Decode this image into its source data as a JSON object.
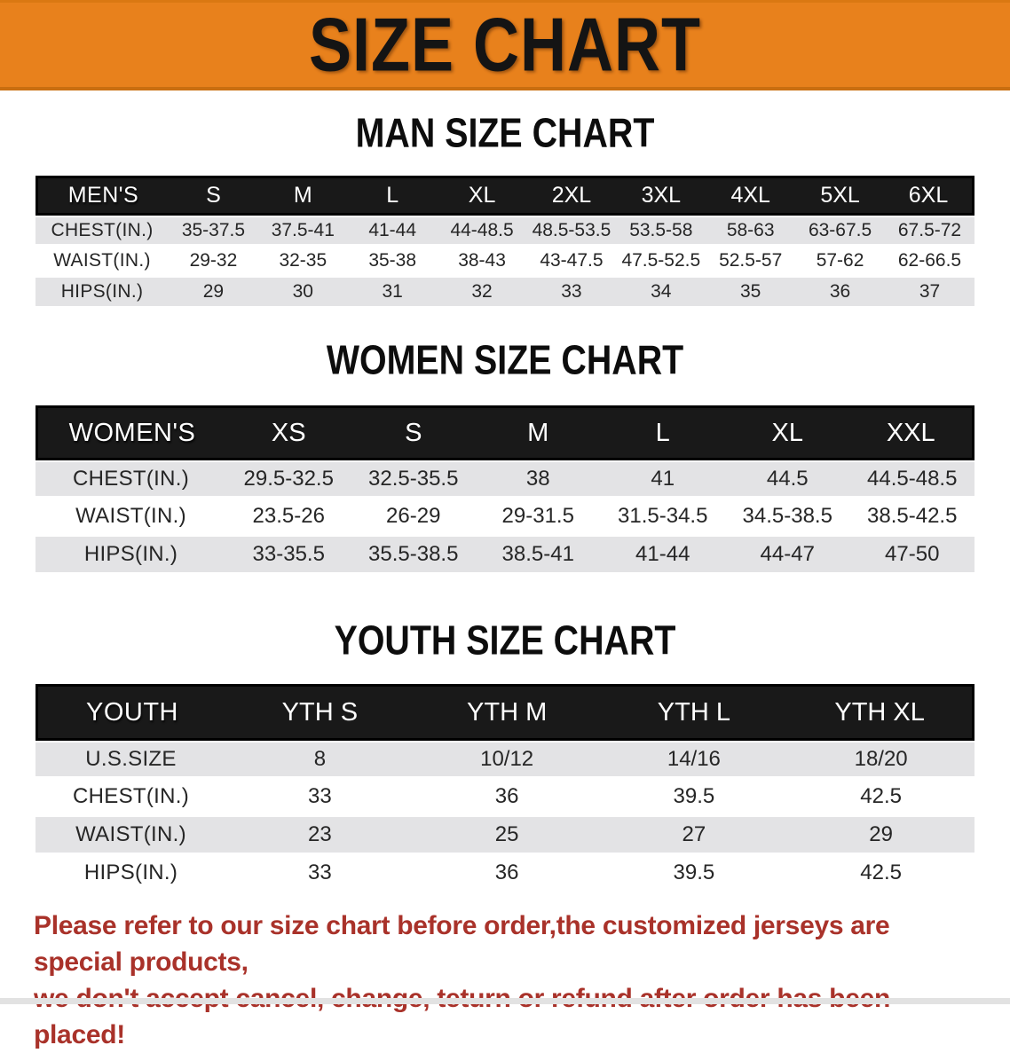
{
  "banner": {
    "title": "SIZE CHART"
  },
  "sections": [
    {
      "heading": "MAN SIZE CHART",
      "group_label": "MEN'S",
      "columns": [
        "S",
        "M",
        "L",
        "XL",
        "2XL",
        "3XL",
        "4XL",
        "5XL",
        "6XL"
      ],
      "label_col_width": 150,
      "rows": [
        {
          "label": "CHEST(IN.)",
          "values": [
            "35-37.5",
            "37.5-41",
            "41-44",
            "44-48.5",
            "48.5-53.5",
            "53.5-58",
            "58-63",
            "63-67.5",
            "67.5-72"
          ]
        },
        {
          "label": "WAIST(IN.)",
          "values": [
            "29-32",
            "32-35",
            "35-38",
            "38-43",
            "43-47.5",
            "47.5-52.5",
            "52.5-57",
            "57-62",
            "62-66.5"
          ]
        },
        {
          "label": "HIPS(IN.)",
          "values": [
            "29",
            "30",
            "31",
            "32",
            "33",
            "34",
            "35",
            "36",
            "37"
          ]
        }
      ]
    },
    {
      "heading": "WOMEN SIZE CHART",
      "group_label": "WOMEN'S",
      "columns": [
        "XS",
        "S",
        "M",
        "L",
        "XL",
        "XXL"
      ],
      "label_col_width": 215,
      "rows": [
        {
          "label": "CHEST(IN.)",
          "values": [
            "29.5-32.5",
            "32.5-35.5",
            "38",
            "41",
            "44.5",
            "44.5-48.5"
          ]
        },
        {
          "label": "WAIST(IN.)",
          "values": [
            "23.5-26",
            "26-29",
            "29-31.5",
            "31.5-34.5",
            "34.5-38.5",
            "38.5-42.5"
          ]
        },
        {
          "label": "HIPS(IN.)",
          "values": [
            "33-35.5",
            "35.5-38.5",
            "38.5-41",
            "41-44",
            "44-47",
            "47-50"
          ]
        }
      ]
    },
    {
      "heading": "YOUTH SIZE CHART",
      "group_label": "YOUTH",
      "columns": [
        "YTH S",
        "YTH M",
        "YTH L",
        "YTH XL"
      ],
      "label_col_width": 215,
      "rows": [
        {
          "label": "U.S.SIZE",
          "values": [
            "8",
            "10/12",
            "14/16",
            "18/20"
          ]
        },
        {
          "label": "CHEST(IN.)",
          "values": [
            "33",
            "36",
            "39.5",
            "42.5"
          ]
        },
        {
          "label": "WAIST(IN.)",
          "values": [
            "23",
            "25",
            "27",
            "29"
          ]
        },
        {
          "label": "HIPS(IN.)",
          "values": [
            "33",
            "36",
            "39.5",
            "42.5"
          ]
        }
      ]
    }
  ],
  "disclaimer": {
    "line1": "Please refer to our size chart before order,the customized jerseys are special products,",
    "line2": "we don't accept cancel, change, teturn or refund after order has been placed!"
  },
  "colors": {
    "banner_bg": "#E8811C",
    "banner_edge": "#C96E10",
    "header_bar_bg": "#191919",
    "row_gray": "#E3E3E5",
    "disclaimer_red": "#A9322A"
  }
}
